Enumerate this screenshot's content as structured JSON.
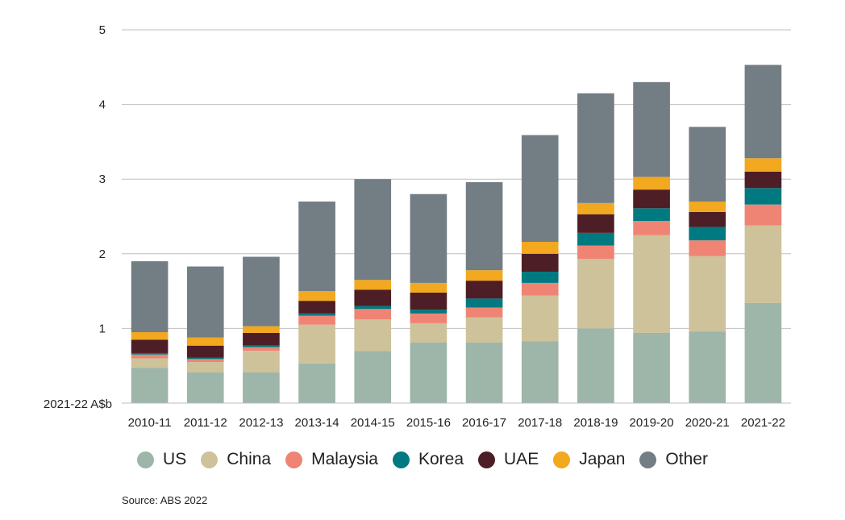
{
  "chart_data": {
    "type": "bar",
    "stacked": true,
    "unit_label": "2021-22 A$b",
    "categories": [
      "2010-11",
      "2011-12",
      "2012-13",
      "2013-14",
      "2014-15",
      "2015-16",
      "2016-17",
      "2017-18",
      "2018-19",
      "2019-20",
      "2020-21",
      "2021-22"
    ],
    "ylim": [
      0,
      5
    ],
    "yticks": [
      "1",
      "2",
      "3",
      "4",
      "5"
    ],
    "grid": true,
    "legend_position": "bottom",
    "series": [
      {
        "name": "US",
        "color": "#9eb5a9",
        "values": [
          0.47,
          0.41,
          0.41,
          0.53,
          0.7,
          0.81,
          0.81,
          0.83,
          1.0,
          0.94,
          0.96,
          1.34
        ]
      },
      {
        "name": "China",
        "color": "#cdc299",
        "values": [
          0.13,
          0.14,
          0.29,
          0.52,
          0.42,
          0.26,
          0.34,
          0.61,
          0.93,
          1.31,
          1.01,
          1.04
        ]
      },
      {
        "name": "Malaysia",
        "color": "#ef8474",
        "values": [
          0.05,
          0.04,
          0.05,
          0.12,
          0.14,
          0.13,
          0.13,
          0.17,
          0.18,
          0.19,
          0.21,
          0.28
        ]
      },
      {
        "name": "Korea",
        "color": "#007a80",
        "values": [
          0.02,
          0.02,
          0.02,
          0.03,
          0.04,
          0.05,
          0.12,
          0.15,
          0.17,
          0.17,
          0.18,
          0.22
        ]
      },
      {
        "name": "UAE",
        "color": "#4d1e25",
        "values": [
          0.18,
          0.16,
          0.17,
          0.17,
          0.22,
          0.23,
          0.24,
          0.24,
          0.25,
          0.25,
          0.2,
          0.22
        ]
      },
      {
        "name": "Japan",
        "color": "#f2a81f",
        "values": [
          0.1,
          0.11,
          0.09,
          0.13,
          0.13,
          0.13,
          0.14,
          0.16,
          0.15,
          0.17,
          0.14,
          0.18
        ]
      },
      {
        "name": "Other",
        "color": "#737d84",
        "values": [
          0.95,
          0.95,
          0.93,
          1.2,
          1.35,
          1.19,
          1.18,
          1.43,
          1.47,
          1.27,
          1.0,
          1.25
        ]
      }
    ],
    "source": "Source: ABS 2022"
  }
}
